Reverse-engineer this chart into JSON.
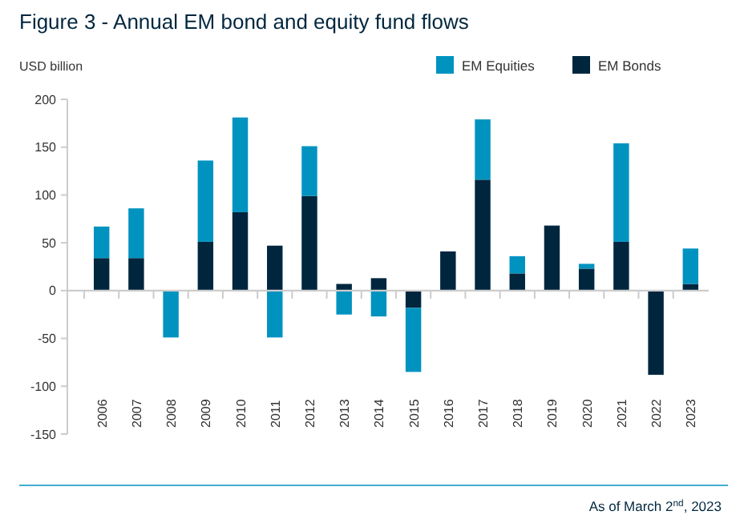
{
  "chart_data": {
    "type": "bar",
    "title": "Figure 3 - Annual EM bond and equity fund flows",
    "ylabel": "USD billion",
    "annotations": [
      "As of March 2$^{nd}$, 2023"
    ],
    "categories": [
      "2006",
      "2007",
      "2008",
      "2009",
      "2010",
      "2011",
      "2012",
      "2013",
      "2014",
      "2015",
      "2016",
      "2017",
      "2018",
      "2019",
      "2020",
      "2021",
      "2022",
      "2023"
    ],
    "series": [
      {
        "name": "EM Bonds",
        "color": "#00263e",
        "values": [
          34,
          34,
          0,
          51,
          82,
          47,
          99,
          7,
          13,
          -18,
          41,
          116,
          18,
          68,
          23,
          51,
          -88,
          7
        ]
      },
      {
        "name": "EM Equities",
        "color": "#0093c0",
        "values": [
          33,
          52,
          -49,
          85,
          99,
          -49,
          52,
          -25,
          -27,
          -67,
          0,
          63,
          18,
          0,
          5,
          103,
          0,
          37
        ]
      }
    ],
    "stacked": true,
    "ylim": [
      -150,
      200
    ],
    "yticks": [
      -150,
      -100,
      -50,
      0,
      50,
      100,
      150,
      200
    ],
    "legend": "top right"
  }
}
